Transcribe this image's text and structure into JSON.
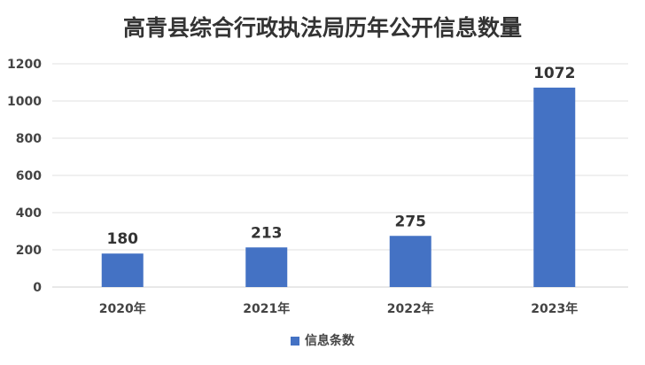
{
  "chart_data": {
    "type": "bar",
    "title": "高青县综合行政执法局历年公开信息数量",
    "categories": [
      "2020年",
      "2021年",
      "2022年",
      "2023年"
    ],
    "series": [
      {
        "name": "信息条数",
        "values": [
          180,
          213,
          275,
          1072
        ],
        "color": "#4472C4"
      }
    ],
    "yticks": [
      0,
      200,
      400,
      600,
      800,
      1000,
      1200
    ],
    "ylim": [
      0,
      1200
    ],
    "grid": true,
    "data_labels": true,
    "legend": "bottom"
  }
}
